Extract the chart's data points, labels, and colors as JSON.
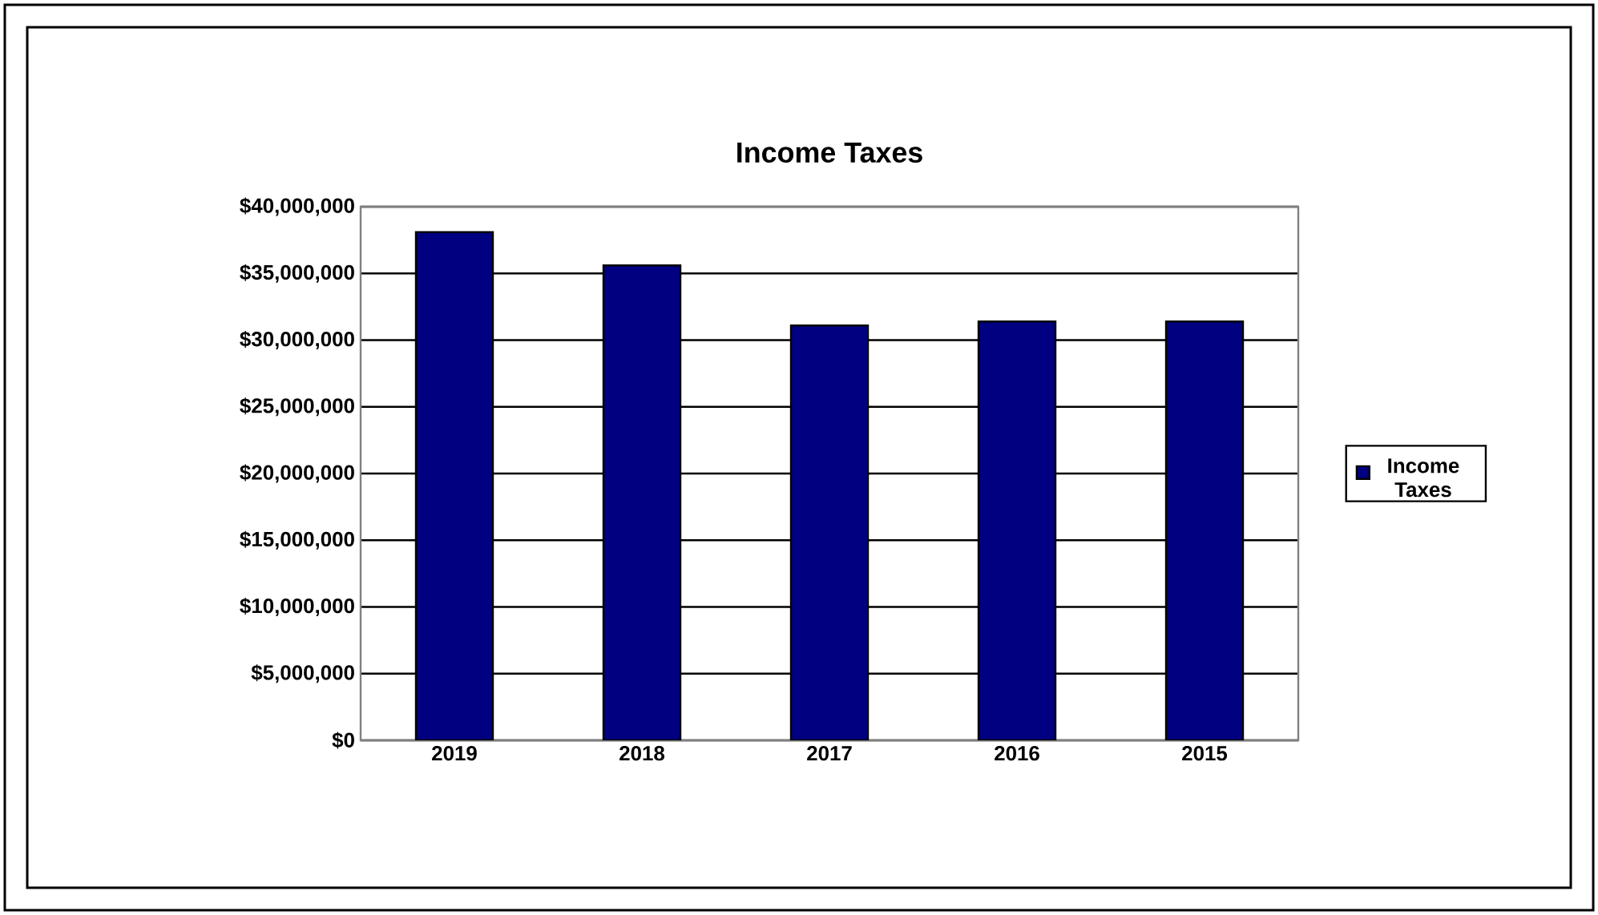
{
  "chart_data": {
    "type": "bar",
    "title": "Income Taxes",
    "categories": [
      "2019",
      "2018",
      "2017",
      "2016",
      "2015"
    ],
    "series": [
      {
        "name": "Income Taxes",
        "color": "#000080",
        "values": [
          38100000,
          35600000,
          31100000,
          31400000,
          31400000
        ]
      }
    ],
    "ylim": [
      0,
      40000000
    ],
    "yticks": [
      {
        "value": 0,
        "label": "$0"
      },
      {
        "value": 5000000,
        "label": "$5,000,000"
      },
      {
        "value": 10000000,
        "label": "$10,000,000"
      },
      {
        "value": 15000000,
        "label": "$15,000,000"
      },
      {
        "value": 20000000,
        "label": "$20,000,000"
      },
      {
        "value": 25000000,
        "label": "$25,000,000"
      },
      {
        "value": 30000000,
        "label": "$30,000,000"
      },
      {
        "value": 35000000,
        "label": "$35,000,000"
      },
      {
        "value": 40000000,
        "label": "$40,000,000"
      }
    ],
    "grid": "y",
    "legend": "right"
  }
}
